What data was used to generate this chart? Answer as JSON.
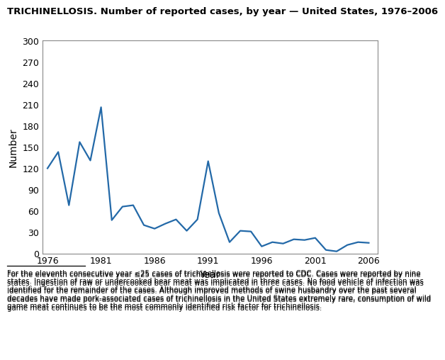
{
  "title": "TRICHINELLOSIS. Number of reported cases, by year — United States, 1976–2006",
  "xlabel": "Year",
  "ylabel": "Number",
  "line_color": "#2369a8",
  "line_width": 1.6,
  "years": [
    1976,
    1977,
    1978,
    1979,
    1980,
    1981,
    1982,
    1983,
    1984,
    1985,
    1986,
    1987,
    1988,
    1989,
    1990,
    1991,
    1992,
    1993,
    1994,
    1995,
    1996,
    1997,
    1998,
    1999,
    2000,
    2001,
    2002,
    2003,
    2004,
    2005,
    2006
  ],
  "cases": [
    120,
    143,
    68,
    157,
    131,
    206,
    47,
    66,
    68,
    40,
    35,
    42,
    48,
    32,
    48,
    130,
    57,
    16,
    32,
    31,
    10,
    16,
    14,
    20,
    19,
    22,
    5,
    3,
    12,
    16,
    15
  ],
  "ylim": [
    0,
    300
  ],
  "yticks": [
    0,
    30,
    60,
    90,
    120,
    150,
    180,
    210,
    240,
    270,
    300
  ],
  "xticks": [
    1976,
    1981,
    1986,
    1991,
    1996,
    2001,
    2006
  ],
  "caption": "For the eleventh consecutive year ≤25 cases of trichinellosis were reported to CDC. Cases were reported by nine states. Ingestion of raw or undercooked bear meat was implicated in three cases. No food vehicle of infection was identified for the remainder of the cases. Although improved methods of swine husbandry over the past several decades have made pork-associated cases of trichinellosis in the United States extremely rare, consumption of wild game meat continues to be the most commonly identified risk factor for trichinellosis.",
  "bg_color": "#ffffff"
}
